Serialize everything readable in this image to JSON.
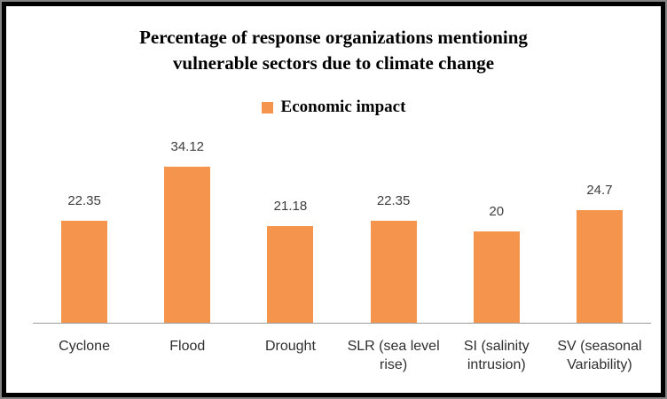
{
  "chart_data": {
    "type": "bar",
    "title": "Percentage of response organizations mentioning vulnerable sectors due to climate change",
    "title_lines": [
      "Percentage of response organizations mentioning",
      "vulnerable sectors due to climate change"
    ],
    "legend": {
      "label": "Economic impact",
      "position": "top-center",
      "swatch_color": "#f5944d"
    },
    "series_name": "Economic impact",
    "categories": [
      "Cyclone",
      "Flood",
      "Drought",
      "SLR (sea level rise)",
      "SI (salinity intrusion)",
      "SV (seasonal Variability)"
    ],
    "values": [
      22.35,
      34.12,
      21.18,
      22.35,
      20,
      24.7
    ],
    "value_labels": [
      "22.35",
      "34.12",
      "21.18",
      "22.35",
      "20",
      "24.7"
    ],
    "xlabel": "",
    "ylabel": "",
    "ylim": [
      0,
      40
    ],
    "grid": false,
    "data_labels_shown": true,
    "bar_color": "#f5944d",
    "axis_line_color": "#9c9c9c",
    "frame_border_color": "#000000",
    "frame_outline_color": "#838383"
  }
}
